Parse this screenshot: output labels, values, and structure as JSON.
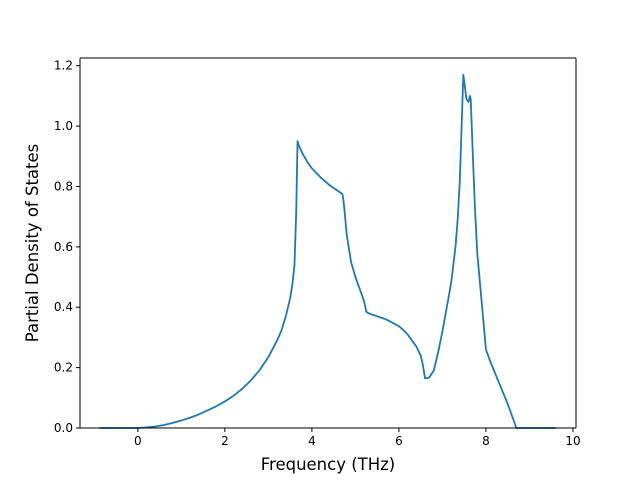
{
  "chart_data": {
    "type": "line",
    "title": "",
    "xlabel": "Frequency (THz)",
    "ylabel": "Partial Density of States",
    "xlim": [
      -1.33,
      10.07
    ],
    "ylim": [
      0.0,
      1.2255
    ],
    "xticks": [
      0,
      2,
      4,
      6,
      8,
      10
    ],
    "yticks": [
      0.0,
      0.2,
      0.4,
      0.6,
      0.8,
      1.0,
      1.2
    ],
    "xtick_labels": [
      "0",
      "2",
      "4",
      "6",
      "8",
      "10"
    ],
    "ytick_labels": [
      "0.0",
      "0.2",
      "0.4",
      "0.6",
      "0.8",
      "1.0",
      "1.2"
    ],
    "grid": false,
    "legend": null,
    "series": [
      {
        "color": "#1f77b4",
        "x": [
          -0.88,
          -0.5,
          0.0,
          0.2,
          0.4,
          0.6,
          0.8,
          1.0,
          1.2,
          1.4,
          1.6,
          1.8,
          2.0,
          2.2,
          2.4,
          2.6,
          2.8,
          3.0,
          3.2,
          3.3,
          3.4,
          3.5,
          3.55,
          3.6,
          3.64,
          3.67,
          3.7,
          3.8,
          3.9,
          4.0,
          4.2,
          4.4,
          4.6,
          4.7,
          4.72,
          4.75,
          4.8,
          4.9,
          5.0,
          5.1,
          5.2,
          5.25,
          5.3,
          5.5,
          5.7,
          5.9,
          6.0,
          6.1,
          6.2,
          6.3,
          6.4,
          6.5,
          6.55,
          6.6,
          6.65,
          6.7,
          6.8,
          6.9,
          7.0,
          7.1,
          7.2,
          7.3,
          7.35,
          7.4,
          7.45,
          7.48,
          7.5,
          7.55,
          7.6,
          7.63,
          7.65,
          7.7,
          7.75,
          7.8,
          7.9,
          8.0,
          8.1,
          8.3,
          8.5,
          8.6,
          8.7,
          8.75,
          8.8,
          9.2,
          9.6
        ],
        "y": [
          0.0,
          0.0,
          0.0,
          0.002,
          0.005,
          0.01,
          0.017,
          0.025,
          0.034,
          0.045,
          0.058,
          0.072,
          0.088,
          0.107,
          0.13,
          0.158,
          0.192,
          0.235,
          0.29,
          0.323,
          0.37,
          0.43,
          0.475,
          0.54,
          0.72,
          0.95,
          0.935,
          0.905,
          0.88,
          0.86,
          0.83,
          0.805,
          0.785,
          0.775,
          0.76,
          0.72,
          0.64,
          0.55,
          0.5,
          0.46,
          0.42,
          0.385,
          0.38,
          0.37,
          0.36,
          0.345,
          0.337,
          0.325,
          0.31,
          0.29,
          0.27,
          0.24,
          0.21,
          0.165,
          0.165,
          0.168,
          0.19,
          0.25,
          0.32,
          0.4,
          0.48,
          0.6,
          0.69,
          0.82,
          1.04,
          1.17,
          1.15,
          1.09,
          1.08,
          1.1,
          1.09,
          0.9,
          0.72,
          0.58,
          0.42,
          0.26,
          0.22,
          0.15,
          0.08,
          0.04,
          0.0,
          0.0,
          0.0,
          0.0,
          0.0
        ]
      }
    ]
  }
}
